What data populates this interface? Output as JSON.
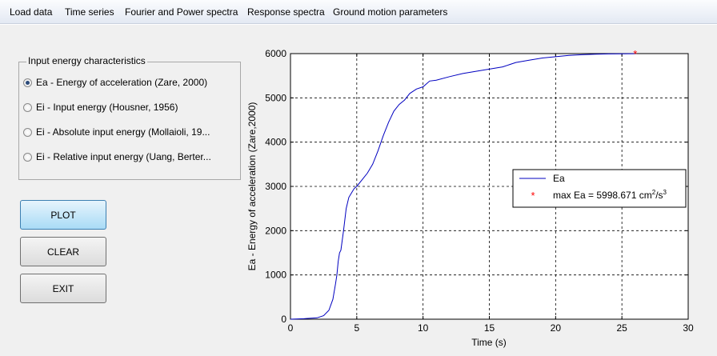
{
  "menu": {
    "items": [
      "Load data",
      "Time series",
      "Fourier and Power spectra",
      "Response spectra",
      "Ground motion parameters"
    ]
  },
  "panel": {
    "title": "Input energy characteristics",
    "options": [
      {
        "label": "Ea - Energy of acceleration (Zare, 2000)",
        "checked": true
      },
      {
        "label": "Ei - Input energy (Housner, 1956)",
        "checked": false
      },
      {
        "label": "Ei - Absolute input energy (Mollaioli, 19...",
        "checked": false
      },
      {
        "label": "Ei - Relative input energy (Uang, Berter...",
        "checked": false
      }
    ]
  },
  "buttons": {
    "plot": "PLOT",
    "clear": "CLEAR",
    "exit": "EXIT"
  },
  "chart_data": {
    "type": "line",
    "xlabel": "Time (s)",
    "ylabel": "Ea - Energy of acceleration (Zare,2000)",
    "xlim": [
      0,
      30
    ],
    "ylim": [
      0,
      6000
    ],
    "xticks": [
      "0",
      "5",
      "10",
      "15",
      "20",
      "25",
      "30"
    ],
    "yticks": [
      "0",
      "1000",
      "2000",
      "3000",
      "4000",
      "5000",
      "6000"
    ],
    "grid": true,
    "legend_position": "center-right",
    "series": [
      {
        "name": "Ea",
        "color": "#0000c0",
        "x": [
          0,
          1.0,
          2.0,
          2.5,
          2.9,
          3.2,
          3.4,
          3.5,
          3.6,
          3.7,
          3.8,
          4.0,
          4.2,
          4.4,
          4.6,
          4.8,
          5.0,
          5.4,
          5.8,
          6.2,
          6.6,
          7.0,
          7.4,
          7.8,
          8.2,
          8.6,
          9.0,
          9.5,
          10.0,
          10.5,
          11.0,
          12.0,
          13.0,
          14.0,
          15.0,
          16.0,
          17.0,
          18.0,
          19.0,
          20.0,
          21.0,
          22.0,
          23.0,
          24.0,
          25.0,
          26.0
        ],
        "y": [
          0,
          10,
          30,
          80,
          200,
          450,
          800,
          1000,
          1300,
          1500,
          1560,
          2000,
          2500,
          2750,
          2850,
          2950,
          3000,
          3150,
          3300,
          3500,
          3800,
          4150,
          4450,
          4700,
          4850,
          4950,
          5100,
          5200,
          5250,
          5380,
          5400,
          5480,
          5550,
          5600,
          5650,
          5700,
          5800,
          5850,
          5900,
          5930,
          5960,
          5975,
          5985,
          5992,
          5996,
          5998.671
        ]
      }
    ],
    "marker": {
      "x": 26.0,
      "y": 5998.671,
      "color": "#ff0000",
      "legend_label": "max Ea = 5998.671 cm",
      "legend_sup1": "2",
      "legend_mid": "/s",
      "legend_sup2": "3"
    }
  }
}
